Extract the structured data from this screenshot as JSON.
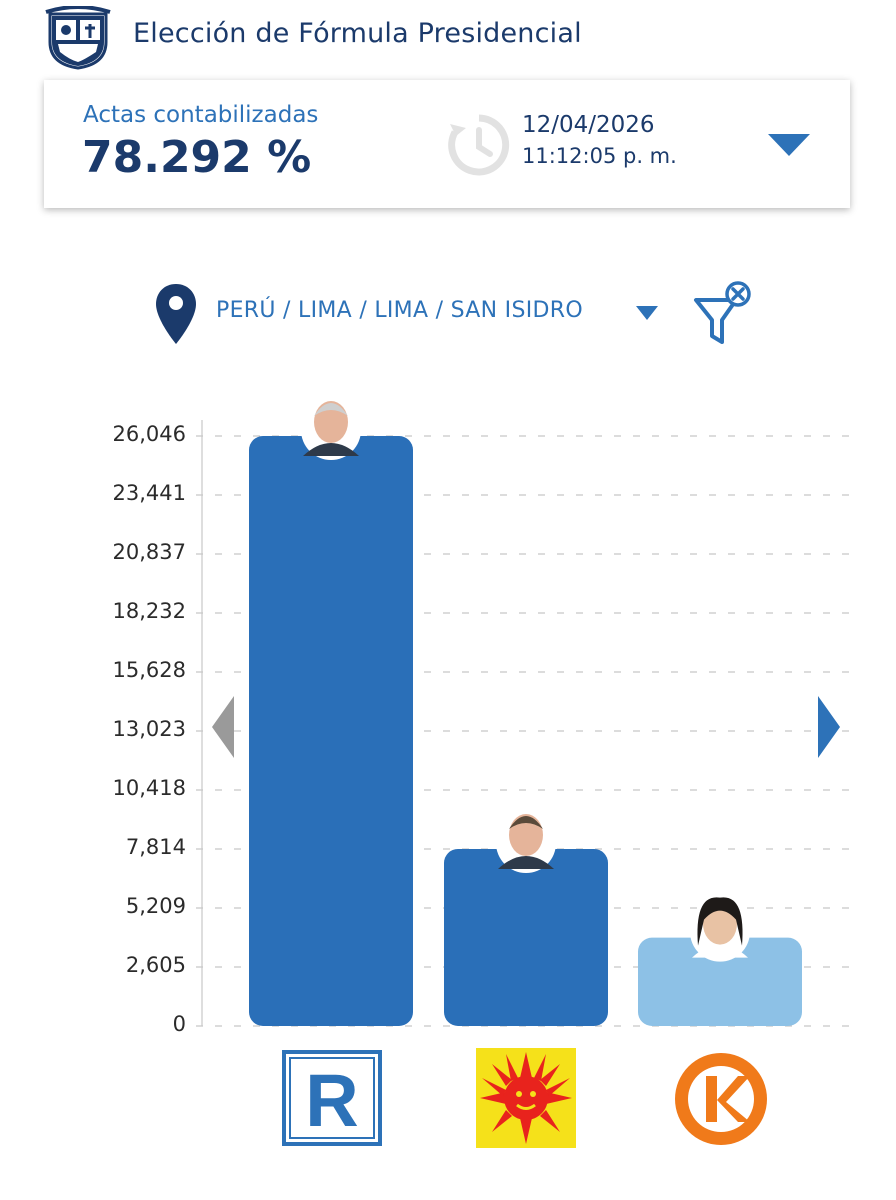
{
  "header": {
    "title": "Elección de Fórmula Presidencial",
    "crest_icon": "peru-coat-of-arms-icon"
  },
  "summary": {
    "actas_label": "Actas contabilizadas",
    "actas_value": "78.292 %",
    "date": "12/04/2026",
    "time": "11:12:05 p. m.",
    "history_icon": "history-clock-icon",
    "expand_icon": "chevron-down-icon"
  },
  "location": {
    "path": "PERÚ / LIMA / LIMA / SAN ISIDRO",
    "pin_icon": "map-pin-icon",
    "filter_icon": "clear-filter-icon"
  },
  "chart_data": {
    "type": "bar",
    "y_ticks": [
      "26,046",
      "23,441",
      "20,837",
      "18,232",
      "15,628",
      "13,023",
      "10,418",
      "7,814",
      "5,209",
      "2,605",
      "0"
    ],
    "ylim": [
      0,
      26046
    ],
    "grid": true,
    "categories": [
      "Candidate R",
      "Candidate Sun",
      "Candidate K"
    ],
    "values": [
      26046,
      7814,
      3900
    ],
    "colors": [
      "#2a6fb8",
      "#2a6fb8",
      "#8dc1e6"
    ],
    "logo_icons": [
      "party-r-logo-icon",
      "party-sun-logo-icon",
      "party-k-logo-icon"
    ],
    "avatar_icons": [
      "candidate-photo-icon",
      "candidate-photo-icon",
      "candidate-photo-icon"
    ]
  },
  "navigation": {
    "prev_icon": "arrow-left-icon",
    "next_icon": "arrow-right-icon"
  },
  "colors": {
    "primary": "#1b3a6b",
    "accent": "#2d72b8",
    "bar": "#2a6fb8",
    "bar_light": "#8dc1e6",
    "nav_prev": "#9a9a9a"
  }
}
